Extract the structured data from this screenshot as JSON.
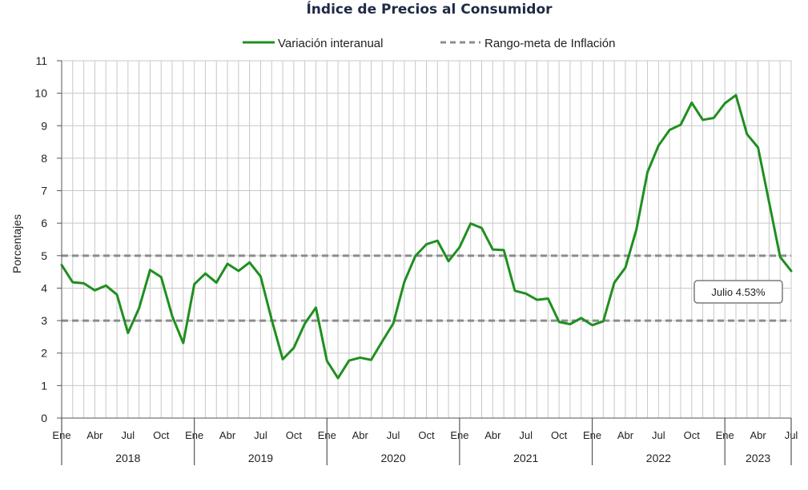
{
  "chart_data": {
    "type": "line",
    "title": "Índice de Precios al Consumidor",
    "ylabel": "Porcentajes",
    "xlabel": "",
    "ylim": [
      0,
      11
    ],
    "yticks": [
      0,
      1,
      2,
      3,
      4,
      5,
      6,
      7,
      8,
      9,
      10,
      11
    ],
    "grid": true,
    "legend_position": "top-center",
    "month_labels": [
      "Ene",
      "Abr",
      "Jul",
      "Oct"
    ],
    "years": [
      "2018",
      "2019",
      "2020",
      "2021",
      "2022",
      "2023"
    ],
    "colors": {
      "series": "#1f8f1f",
      "target": "#8c8c8c",
      "grid": "#c8c8c8",
      "title": "#1f2a44"
    },
    "series": [
      {
        "name": "Variación interanual",
        "style": "solid",
        "values": [
          4.71,
          4.18,
          4.15,
          3.93,
          4.08,
          3.8,
          2.62,
          3.38,
          4.56,
          4.34,
          3.14,
          2.31,
          4.12,
          4.45,
          4.17,
          4.75,
          4.53,
          4.79,
          4.36,
          3.03,
          1.81,
          2.16,
          2.91,
          3.4,
          1.76,
          1.23,
          1.77,
          1.86,
          1.79,
          2.36,
          2.91,
          4.19,
          4.99,
          5.35,
          5.46,
          4.83,
          5.26,
          5.99,
          5.85,
          5.19,
          5.17,
          3.92,
          3.83,
          3.64,
          3.68,
          2.96,
          2.89,
          3.08,
          2.86,
          2.98,
          4.17,
          4.63,
          5.81,
          7.57,
          8.39,
          8.87,
          9.03,
          9.71,
          9.18,
          9.24,
          9.69,
          9.94,
          8.74,
          8.33,
          6.65,
          4.96,
          4.53
        ]
      },
      {
        "name": "Rango-meta de Inflación",
        "style": "dashed",
        "bounds": [
          3,
          5
        ]
      }
    ],
    "annotations": [
      {
        "text": "Julio 4.53%",
        "x": "Jul 2023",
        "y": 4.53
      }
    ]
  }
}
